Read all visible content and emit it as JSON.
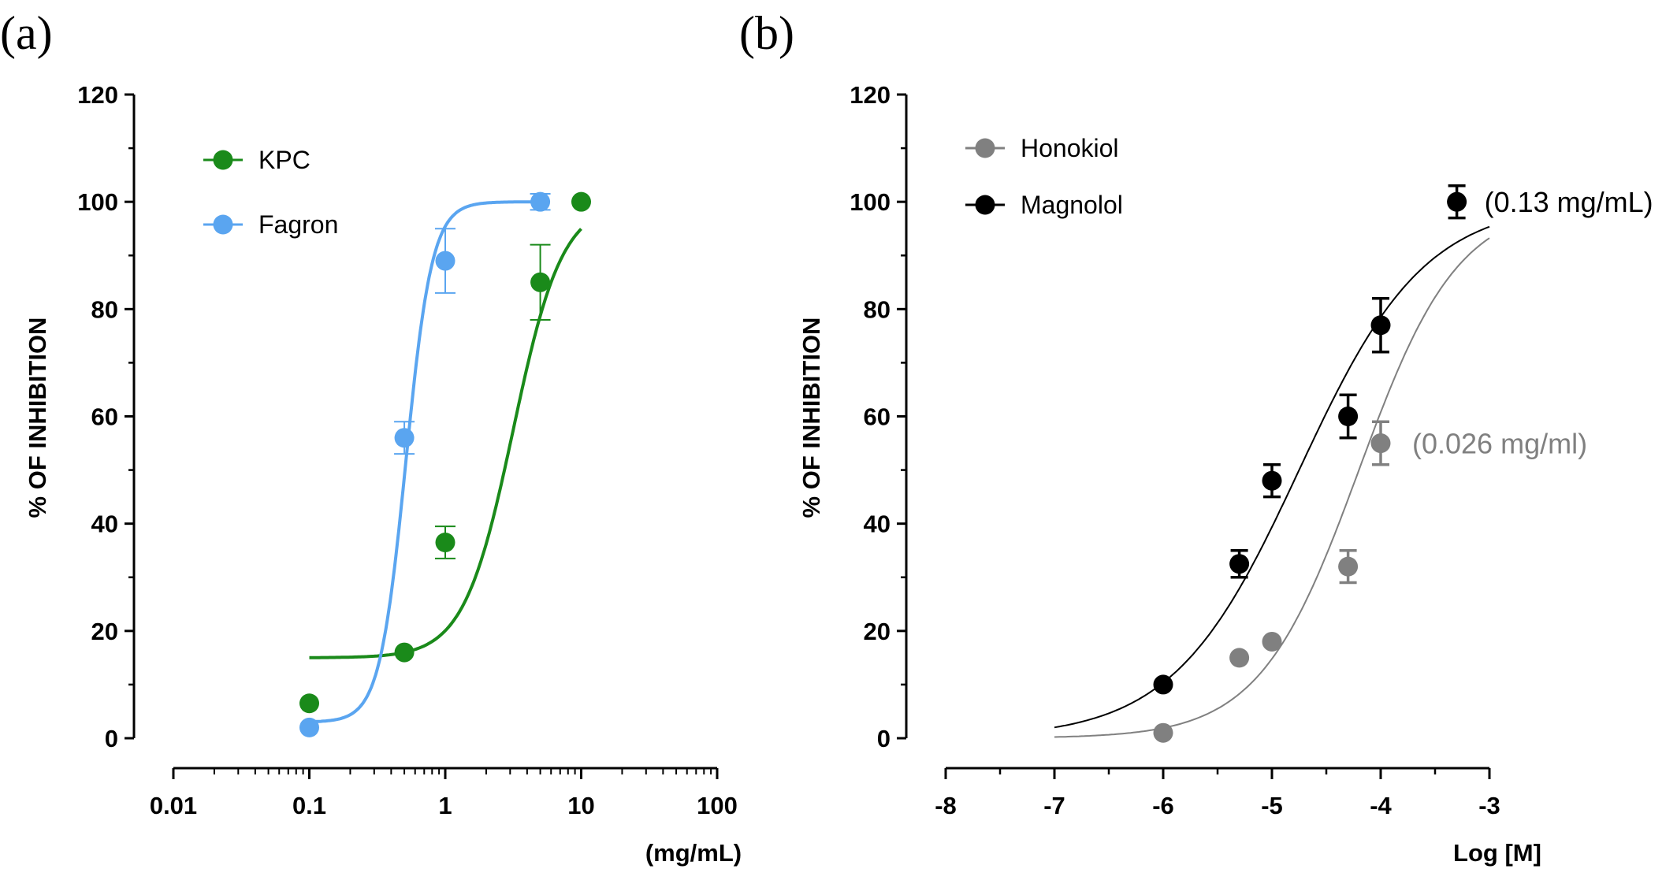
{
  "chart_data": [
    {
      "type": "scatter",
      "panel_label": "(a)",
      "xlabel": "(mg/mL)",
      "ylabel": "% OF INHIBITION",
      "x_scale": "log",
      "xlim": [
        0.01,
        100
      ],
      "ylim": [
        0,
        120
      ],
      "x_ticks": [
        0.01,
        0.1,
        1,
        10,
        100
      ],
      "x_tick_labels": [
        "0.01",
        "0.1",
        "1",
        "10",
        "100"
      ],
      "y_ticks": [
        0,
        20,
        40,
        60,
        80,
        100,
        120
      ],
      "y_tick_labels": [
        "0",
        "20",
        "40",
        "60",
        "80",
        "100",
        "120"
      ],
      "legend_position": "top-left",
      "series": [
        {
          "name": "KPC",
          "color": "#1a8a1a",
          "points": [
            {
              "x": 0.1,
              "y": 6.5,
              "err": 0
            },
            {
              "x": 0.5,
              "y": 16,
              "err": 0
            },
            {
              "x": 1,
              "y": 36.5,
              "err": 3
            },
            {
              "x": 5,
              "y": 85,
              "err": 7
            },
            {
              "x": 10,
              "y": 100,
              "err": 0
            }
          ],
          "fit": {
            "bottom": 15,
            "top": 100,
            "log_ec50": 0.5,
            "hill": 2.4,
            "x_from": 0.1,
            "x_to": 10
          }
        },
        {
          "name": "Fagron",
          "color": "#5aa5f0",
          "points": [
            {
              "x": 0.1,
              "y": 2,
              "err": 0
            },
            {
              "x": 0.5,
              "y": 56,
              "err": 3
            },
            {
              "x": 1,
              "y": 89,
              "err": 6
            },
            {
              "x": 5,
              "y": 100,
              "err": 1.5
            }
          ],
          "fit": {
            "bottom": 3,
            "top": 100,
            "log_ec50": -0.29,
            "hill": 4.5,
            "x_from": 0.1,
            "x_to": 5
          }
        }
      ],
      "annotations": []
    },
    {
      "type": "scatter",
      "panel_label": "(b)",
      "xlabel": "Log [M]",
      "ylabel": "% OF INHIBITION",
      "x_scale": "linear",
      "xlim": [
        -8,
        -3
      ],
      "ylim": [
        0,
        120
      ],
      "x_ticks": [
        -8,
        -7,
        -6,
        -5,
        -4,
        -3
      ],
      "x_tick_labels": [
        "-8",
        "-7",
        "-6",
        "-5",
        "-4",
        "-3"
      ],
      "y_ticks": [
        0,
        20,
        40,
        60,
        80,
        100,
        120
      ],
      "y_tick_labels": [
        "0",
        "20",
        "40",
        "60",
        "80",
        "100",
        "120"
      ],
      "legend_position": "top-left",
      "series": [
        {
          "name": "Honokiol",
          "color": "#808080",
          "points": [
            {
              "x": -6,
              "y": 1,
              "err": 0
            },
            {
              "x": -5.3,
              "y": 15,
              "err": 0
            },
            {
              "x": -5,
              "y": 18,
              "err": 0
            },
            {
              "x": -4.3,
              "y": 32,
              "err": 3
            },
            {
              "x": -4,
              "y": 55,
              "err": 4
            }
          ],
          "fit": {
            "bottom": 0,
            "top": 100,
            "log_ec50": -4.2,
            "hill": 0.95,
            "x_from": -7,
            "x_to": -3
          }
        },
        {
          "name": "Magnolol",
          "color": "#000000",
          "points": [
            {
              "x": -6,
              "y": 10,
              "err": 0
            },
            {
              "x": -5.3,
              "y": 32.5,
              "err": 2.5
            },
            {
              "x": -5,
              "y": 48,
              "err": 3
            },
            {
              "x": -4.3,
              "y": 60,
              "err": 4
            },
            {
              "x": -4,
              "y": 77,
              "err": 5
            },
            {
              "x": -3.3,
              "y": 100,
              "err": 3
            }
          ],
          "fit": {
            "bottom": 0,
            "top": 100,
            "log_ec50": -4.75,
            "hill": 0.75,
            "x_from": -7,
            "x_to": -3
          }
        }
      ],
      "annotations": [
        {
          "text": "(0.13 mg/mL)",
          "x": -3.3,
          "y": 100,
          "color": "#000000"
        },
        {
          "text": "(0.026 mg/ml)",
          "x": -4,
          "y": 55,
          "color": "#808080"
        }
      ]
    }
  ]
}
